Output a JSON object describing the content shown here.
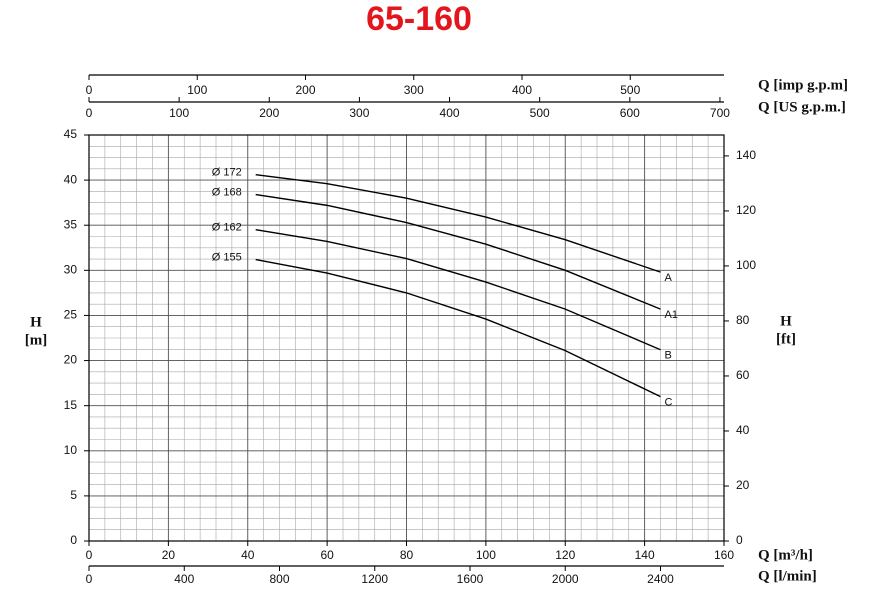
{
  "chart_data": {
    "type": "line",
    "title": "65-160",
    "x": [
      42,
      60,
      80,
      100,
      120,
      144
    ],
    "series": [
      {
        "name": "A",
        "label": "Ø 172",
        "color": "#000000",
        "values": [
          40.6,
          39.6,
          38.0,
          35.9,
          33.4,
          29.8
        ]
      },
      {
        "name": "A1",
        "label": "Ø 168",
        "color": "#000000",
        "values": [
          38.4,
          37.2,
          35.3,
          32.9,
          30.0,
          25.7
        ]
      },
      {
        "name": "B",
        "label": "Ø 162",
        "color": "#000000",
        "values": [
          34.5,
          33.2,
          31.3,
          28.7,
          25.7,
          21.2
        ]
      },
      {
        "name": "C",
        "label": "Ø 155",
        "color": "#000000",
        "values": [
          31.2,
          29.7,
          27.5,
          24.6,
          21.1,
          16.0
        ]
      }
    ],
    "xlabel": "Q [m³/h]",
    "xlim": [
      0,
      160
    ],
    "xticks": [
      0,
      20,
      40,
      60,
      80,
      100,
      120,
      140,
      160
    ],
    "ylabel": "H",
    "yunit": "[m]",
    "ylim": [
      0,
      45
    ],
    "yticks": [
      0,
      5,
      10,
      15,
      20,
      25,
      30,
      35,
      40,
      45
    ],
    "y2label": "H",
    "y2unit": "[ft]",
    "y2lim": [
      0,
      147.6
    ],
    "y2ticks": [
      0,
      20,
      40,
      60,
      80,
      100,
      120,
      140
    ],
    "secondary_x": [
      {
        "label": "Q [l/min]",
        "position": "bottom",
        "lim": [
          0,
          2666.7
        ],
        "ticks": [
          0,
          400,
          800,
          1200,
          1600,
          2000,
          2400
        ]
      },
      {
        "label": "Q [imp g.p.m]",
        "position": "top",
        "lim": [
          0,
          586.6
        ],
        "ticks": [
          0,
          100,
          200,
          300,
          400,
          500
        ]
      },
      {
        "label": "Q [US g.p.m.]",
        "position": "top",
        "lim": [
          0,
          704.5
        ],
        "ticks": [
          0,
          100,
          200,
          300,
          400,
          500,
          600,
          700
        ]
      }
    ],
    "grid": true,
    "minor_grid": {
      "x": 4,
      "y": 1.25
    }
  }
}
